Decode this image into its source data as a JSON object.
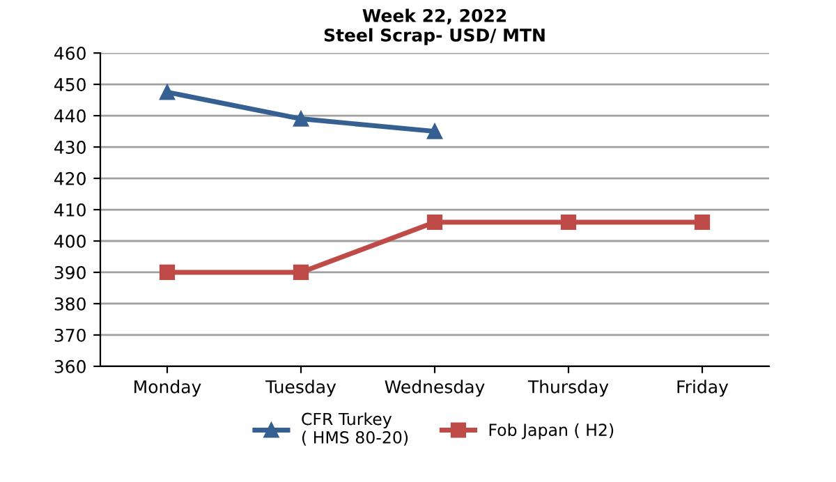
{
  "chart_data": {
    "type": "line",
    "title": "Week 22, 2022\nSteel Scrap- USD/ MTN",
    "categories": [
      "Monday",
      "Tuesday",
      "Wednesday",
      "Thursday",
      "Friday"
    ],
    "series": [
      {
        "name": "CFR Turkey\n( HMS 80-20)",
        "color": "#376092",
        "marker": "triangle",
        "values": [
          447.5,
          439,
          435,
          null,
          null
        ]
      },
      {
        "name": "Fob Japan ( H2)",
        "color": "#be4b48",
        "marker": "square",
        "values": [
          390,
          390,
          406,
          406,
          406
        ]
      }
    ],
    "ylim": [
      360,
      460
    ],
    "yticks": [
      360,
      370,
      380,
      390,
      400,
      410,
      420,
      430,
      440,
      450,
      460
    ],
    "grid": "y",
    "legend": "bottom",
    "line_style": "solid"
  }
}
